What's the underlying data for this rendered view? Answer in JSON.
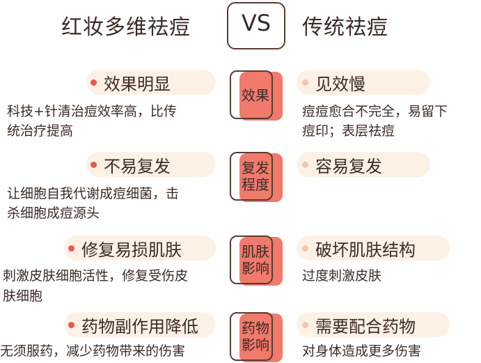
{
  "header": {
    "left_title": "红妆多维祛痘",
    "vs_label": "VS",
    "right_title": "传统祛痘"
  },
  "rows": [
    {
      "category": [
        "效果"
      ],
      "left_label": "效果明显",
      "left_desc": [
        "科技+针清治痘效率高，比传",
        "统治疗提高"
      ],
      "right_label": "见效慢",
      "right_desc": [
        "痘痘愈合不完全，易留下",
        "痘印；表层祛痘"
      ]
    },
    {
      "category": [
        "复发",
        "程度"
      ],
      "left_label": "不易复发",
      "left_desc": [
        "让细胞自我代谢成痘细菌，击",
        "杀细胞成痘源头"
      ],
      "right_label": "容易复发",
      "right_desc": []
    },
    {
      "category": [
        "肌肤",
        "影响"
      ],
      "left_label": "修复易损肌肤",
      "left_desc": [
        "刺激皮肤细胞活性，修复受伤皮",
        "肤细胞"
      ],
      "right_label": "破坏肌肤结构",
      "right_desc": [
        "过度刺激皮肤"
      ]
    },
    {
      "category": [
        "药物",
        "影响"
      ],
      "left_label": "药物副作用降低",
      "left_desc": [
        "无须服药，减少药物带来的伤害"
      ],
      "right_label": "需要配合药物",
      "right_desc": [
        "对身体造成更多伤害"
      ]
    }
  ],
  "colors": {
    "accent": "#f07a6c",
    "pill_bg": "#fdf1e6",
    "dot_left": "#e9574f",
    "dot_right": "#f1c7ad",
    "outline": "#5a3a30"
  }
}
